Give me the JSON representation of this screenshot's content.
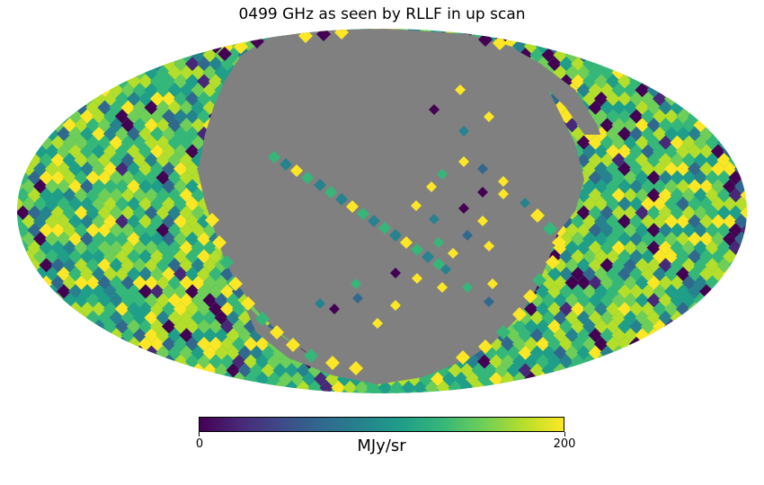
{
  "title": "0499 GHz as seen by RLLF in up scan",
  "projection": "mollweide",
  "colormap": "viridis",
  "colors": {
    "masked": "#808080",
    "background": "#ffffff",
    "cmap_stops": [
      "#440154",
      "#482878",
      "#3e4a89",
      "#31688e",
      "#26828e",
      "#1f9e89",
      "#35b779",
      "#6ece58",
      "#b5de2b",
      "#fde725"
    ]
  },
  "colorbar": {
    "min_label": "0",
    "max_label": "200",
    "unit": "MJy/sr",
    "range": [
      0,
      200
    ]
  }
}
